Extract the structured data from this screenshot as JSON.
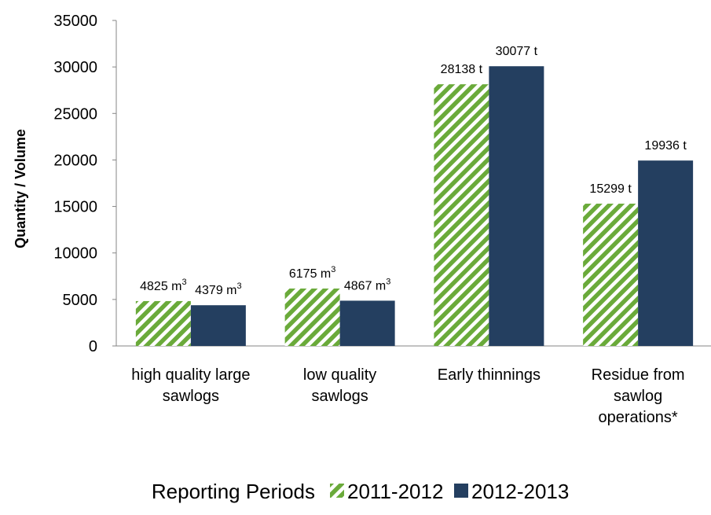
{
  "chart_data": {
    "type": "bar",
    "ylabel": "Quantity / Volume",
    "xlabel": "",
    "ylim": [
      0,
      35000
    ],
    "yticks": [
      0,
      5000,
      10000,
      15000,
      20000,
      25000,
      30000,
      35000
    ],
    "grid": false,
    "legend_position": "bottom",
    "legend_title": "Reporting Periods",
    "categories": [
      [
        "high quality large",
        "sawlogs"
      ],
      [
        "low quality",
        "sawlogs"
      ],
      [
        "Early thinnings"
      ],
      [
        "Residue from",
        "sawlog",
        "operations*"
      ]
    ],
    "series": [
      {
        "name": "2011-2012",
        "color": "#6aaa3a",
        "pattern": "diagonal-stripes",
        "values": [
          4825,
          6175,
          28138,
          15299
        ],
        "labels": [
          {
            "value": "4825",
            "unit": "m",
            "sup": "3"
          },
          {
            "value": "6175",
            "unit": "m",
            "sup": "3"
          },
          {
            "value": "28138",
            "unit": "t",
            "sup": ""
          },
          {
            "value": "15299",
            "unit": "t",
            "sup": ""
          }
        ]
      },
      {
        "name": "2012-2013",
        "color": "#243f60",
        "values": [
          4379,
          4867,
          30077,
          19936
        ],
        "labels": [
          {
            "value": "4379",
            "unit": "m",
            "sup": "3"
          },
          {
            "value": "4867",
            "unit": "m",
            "sup": "3"
          },
          {
            "value": "30077",
            "unit": "t",
            "sup": ""
          },
          {
            "value": "19936",
            "unit": "t",
            "sup": ""
          }
        ]
      }
    ]
  }
}
